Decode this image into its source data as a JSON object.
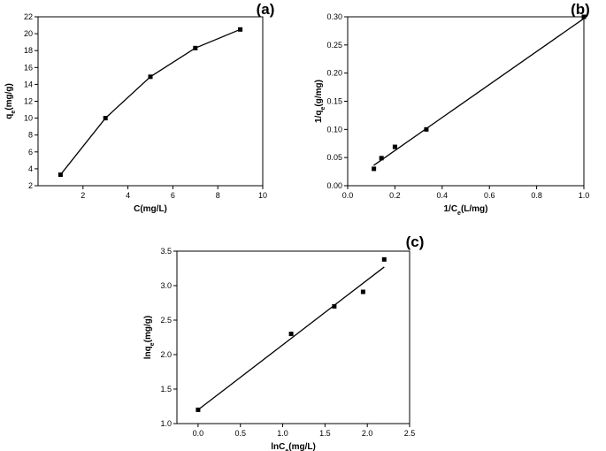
{
  "chart_data": [
    {
      "panel": "(a)",
      "type": "line",
      "xlabel": "C(mg/L)",
      "ylabel_main": "q",
      "ylabel_sub": "e",
      "ylabel_rest": "(mg/g)",
      "xlim": [
        0,
        10
      ],
      "ylim": [
        2,
        22
      ],
      "xticks": [
        2,
        4,
        6,
        8,
        10
      ],
      "yticks": [
        2,
        4,
        6,
        8,
        10,
        12,
        14,
        16,
        18,
        20,
        22
      ],
      "grid": false,
      "series": [
        {
          "x": [
            1,
            3,
            5,
            7,
            9
          ],
          "y": [
            3.3,
            10.0,
            14.9,
            18.3,
            20.5
          ]
        }
      ]
    },
    {
      "panel": "(b)",
      "type": "scatter",
      "xlabel_main": "1/C",
      "xlabel_sub": "e",
      "xlabel_rest": "(L/mg)",
      "ylabel_main": "1/q",
      "ylabel_sub": "e",
      "ylabel_rest": "(g/mg)",
      "xlim": [
        0.0,
        1.0
      ],
      "ylim": [
        0.0,
        0.3
      ],
      "xticks": [
        "0.0",
        "0.2",
        "0.4",
        "0.6",
        "0.8",
        "1.0"
      ],
      "yticks": [
        "0.00",
        "0.05",
        "0.10",
        "0.15",
        "0.20",
        "0.25",
        "0.30"
      ],
      "grid": false,
      "series": [
        {
          "x": [
            0.111,
            0.143,
            0.2,
            0.333,
            1.0
          ],
          "y": [
            0.03,
            0.049,
            0.069,
            0.1,
            0.3
          ]
        }
      ],
      "fit_line": {
        "x": [
          0.11,
          1.0
        ],
        "y": [
          0.036,
          0.297
        ]
      }
    },
    {
      "panel": "(c)",
      "type": "scatter",
      "xlabel_main": "lnC",
      "xlabel_sub": "e",
      "xlabel_rest": "(mg/L)",
      "ylabel_main": "lnq",
      "ylabel_sub": "e",
      "ylabel_rest": "(mg/g)",
      "xlim": [
        -0.25,
        2.5
      ],
      "ylim": [
        1.0,
        3.5
      ],
      "xticks": [
        "0.0",
        "0.5",
        "1.0",
        "1.5",
        "2.0",
        "2.5"
      ],
      "yticks": [
        "1.0",
        "1.5",
        "2.0",
        "2.5",
        "3.0",
        "3.5"
      ],
      "grid": false,
      "series": [
        {
          "x": [
            0.0,
            1.1,
            1.61,
            1.95,
            2.2
          ],
          "y": [
            1.2,
            2.3,
            2.7,
            2.91,
            3.38
          ]
        }
      ],
      "fit_line": {
        "x": [
          0.0,
          2.2
        ],
        "y": [
          1.2,
          3.27
        ]
      }
    }
  ]
}
